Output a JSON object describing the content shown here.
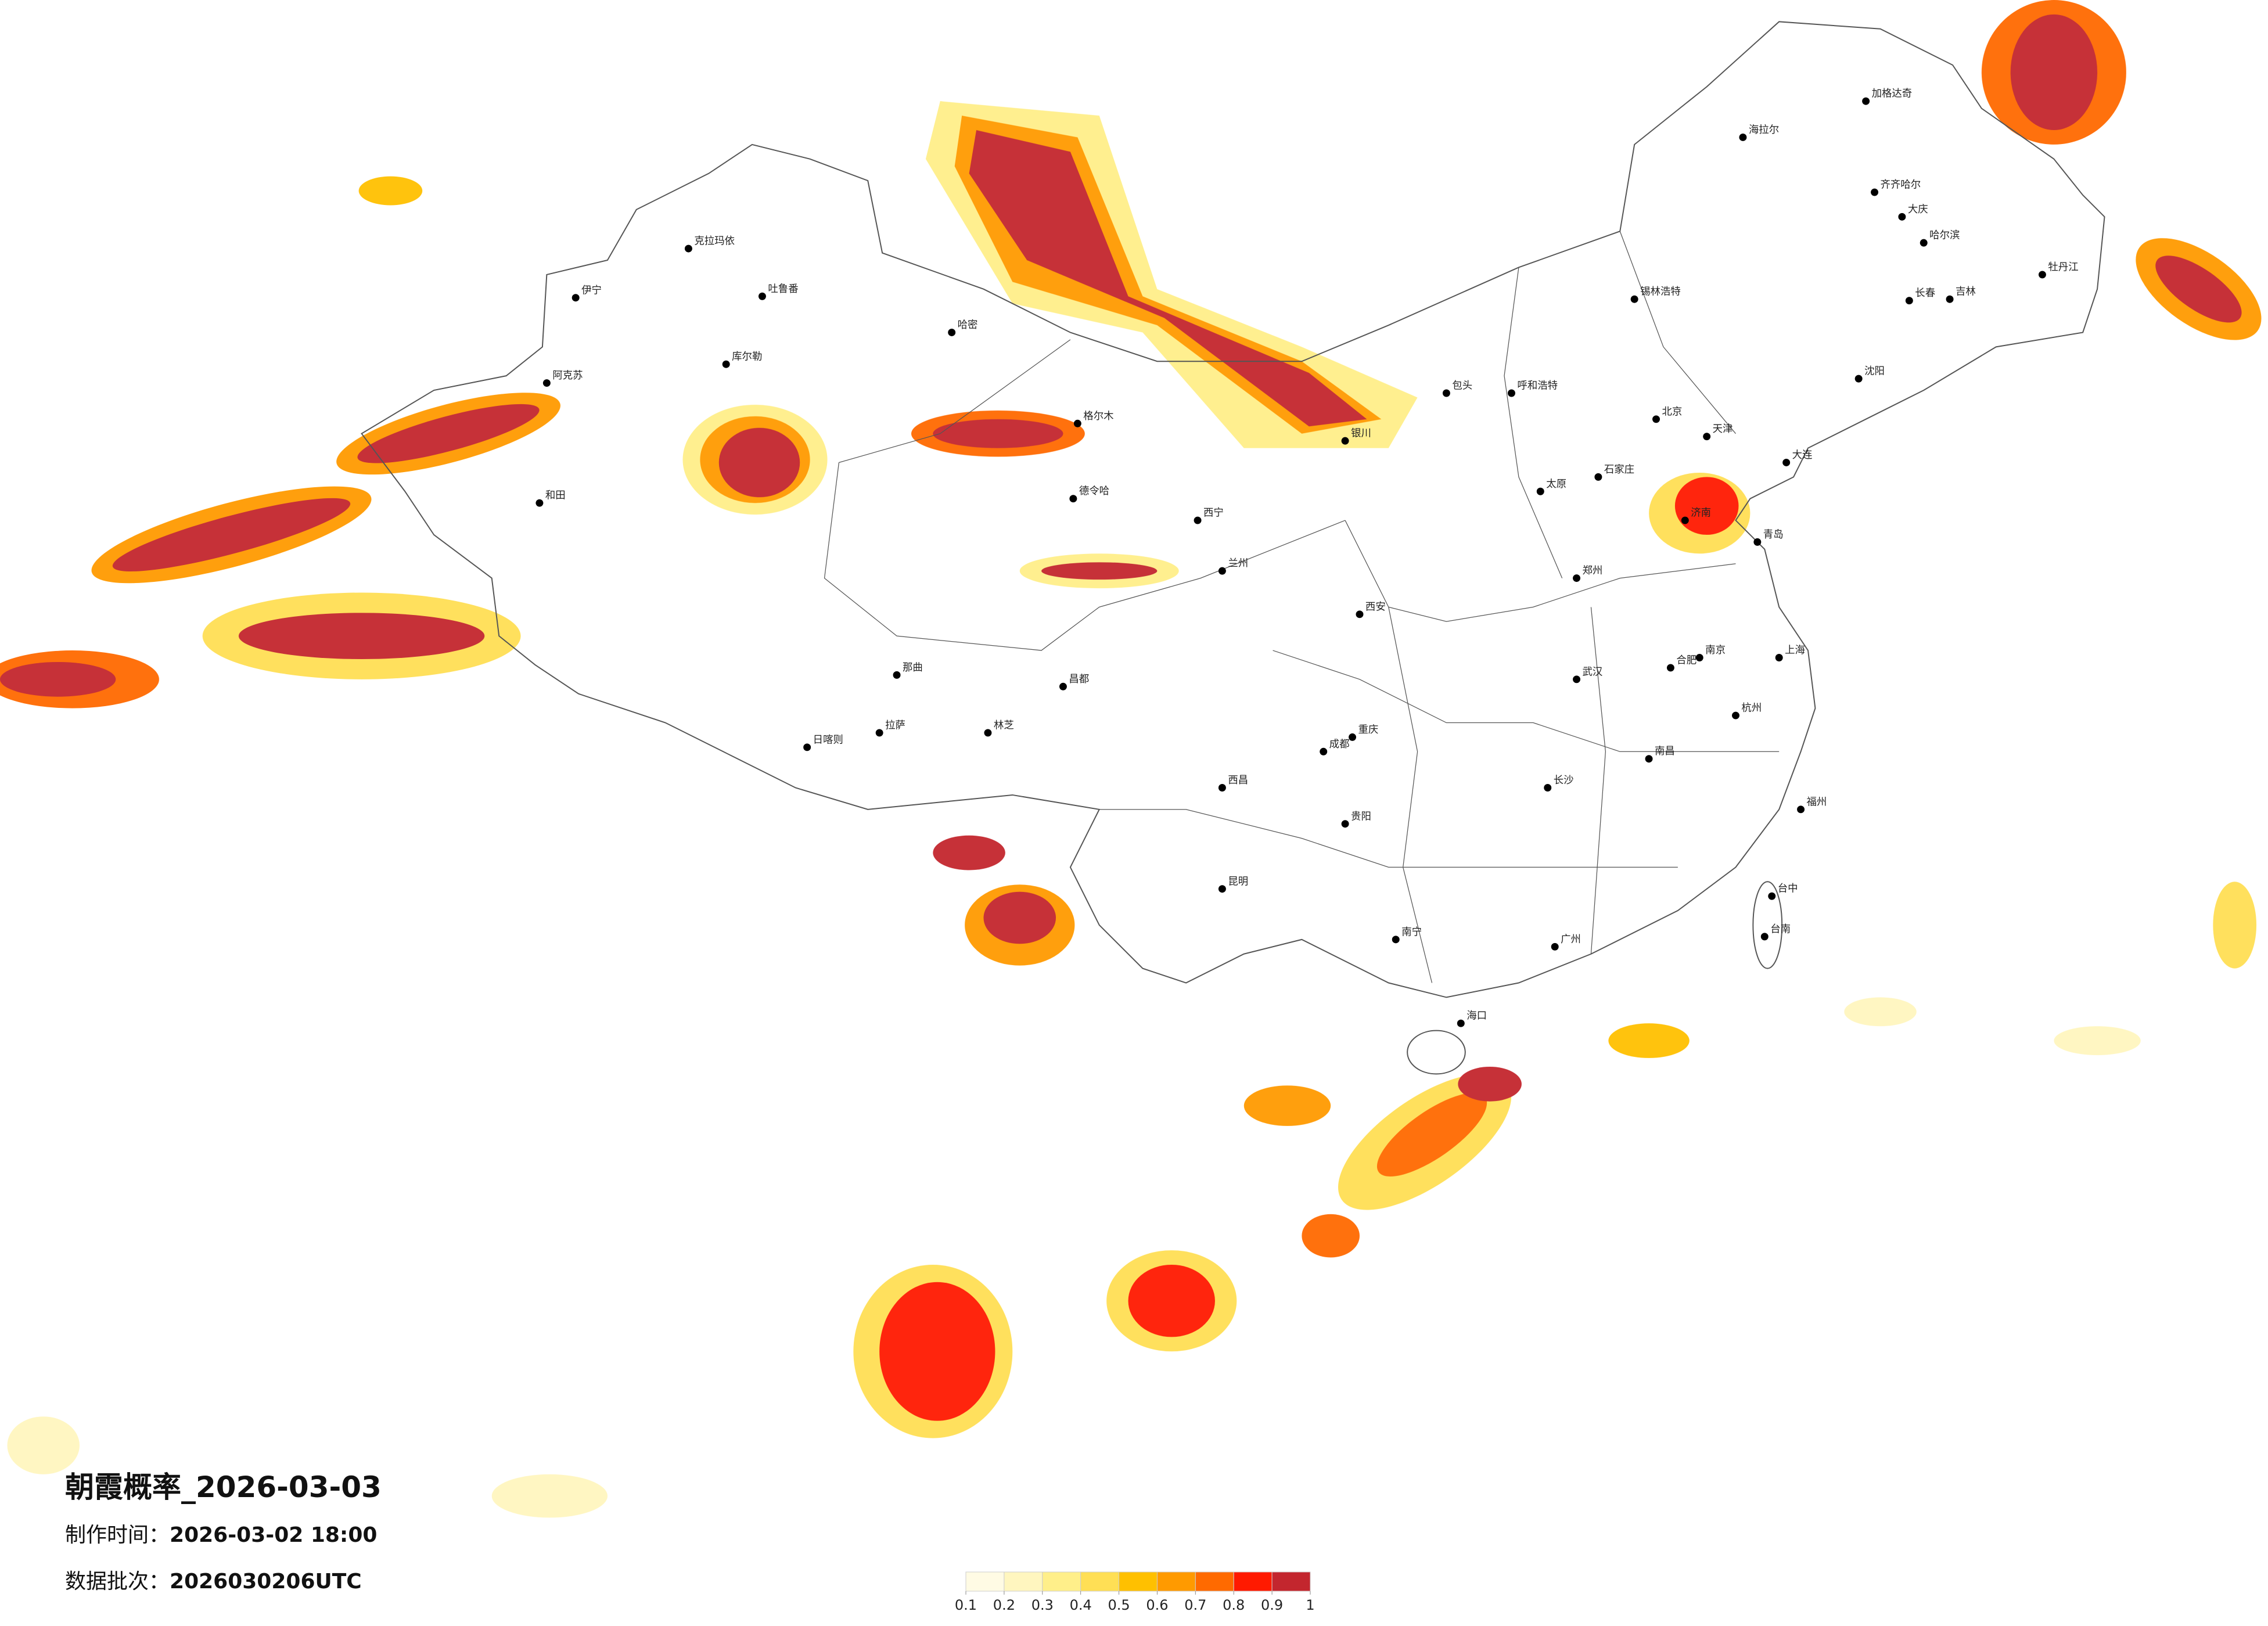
{
  "title": "朝霞概率_2026-03-03",
  "production_time_label": "制作时间：",
  "production_time": "2026-03-02 18:00",
  "batch_label": "数据批次：",
  "batch": "2026030206UTC",
  "colorbar": {
    "colors": [
      "#fffbe4",
      "#fff6bf",
      "#ffef8a",
      "#ffdf55",
      "#ffc000",
      "#ff9a00",
      "#ff6a00",
      "#ff1a00",
      "#c3262e"
    ],
    "ticks": [
      0.1,
      0.2,
      0.3,
      0.4,
      0.5,
      0.6,
      0.7,
      0.8,
      0.9,
      1
    ]
  },
  "cities": [
    "克拉玛依",
    "伊宁",
    "阿克苏",
    "和田",
    "库尔勒",
    "吐鲁番",
    "哈密",
    "拉萨",
    "日喀则",
    "林芝",
    "那曲",
    "格尔木",
    "德令哈",
    "西宁",
    "兰州",
    "银川",
    "包头",
    "呼和浩特",
    "锡林浩特",
    "海拉尔",
    "加格达奇",
    "齐齐哈尔",
    "大庆",
    "哈尔滨",
    "长春",
    "吉林",
    "牡丹江",
    "沈阳",
    "大连",
    "北京",
    "天津",
    "石家庄",
    "太原",
    "济南",
    "青岛",
    "郑州",
    "西安",
    "成都",
    "重庆",
    "昆明",
    "贵阳",
    "南宁",
    "海口",
    "广州",
    "长沙",
    "武汉",
    "南昌",
    "合肥",
    "南京",
    "上海",
    "杭州",
    "福州",
    "台中",
    "台南",
    "昌都",
    "西昌"
  ]
}
